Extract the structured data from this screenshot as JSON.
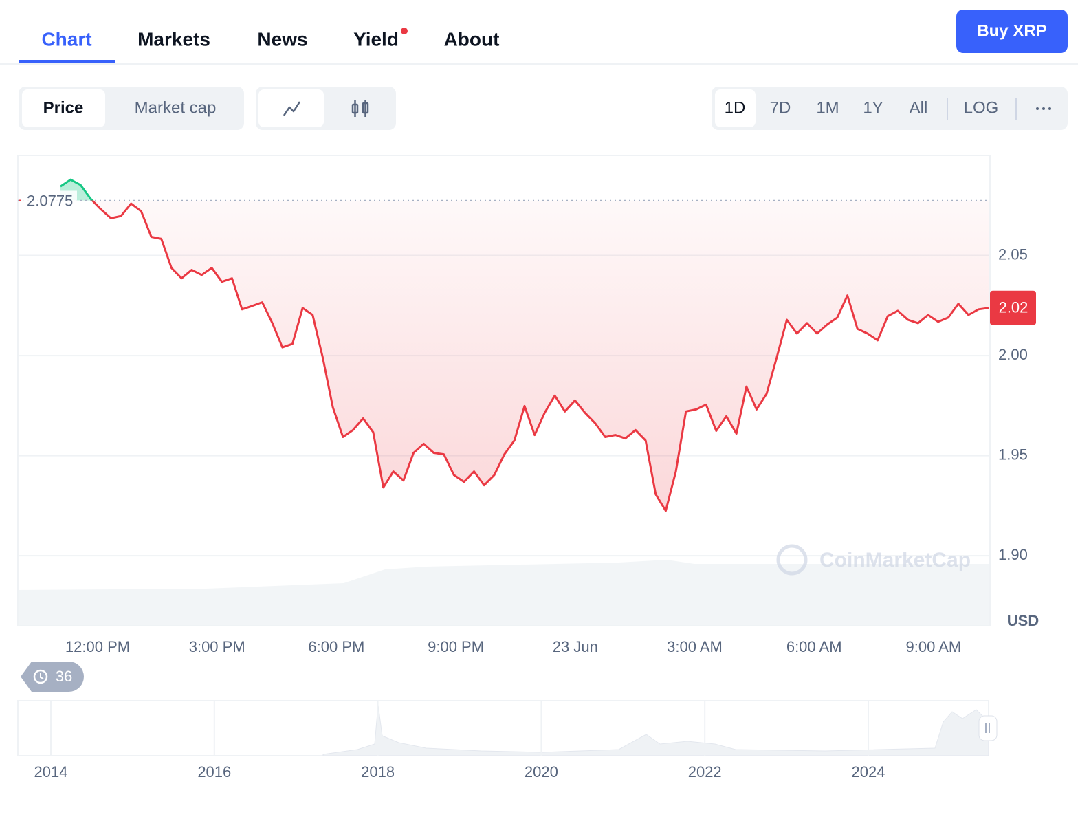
{
  "tabs": [
    "Chart",
    "Markets",
    "News",
    "Yield",
    "About"
  ],
  "buy_button": "Buy XRP",
  "metric_toggle": [
    "Price",
    "Market cap"
  ],
  "ranges": [
    "1D",
    "7D",
    "1M",
    "1Y",
    "All",
    "LOG"
  ],
  "chart_data": {
    "type": "line",
    "color": "#ea3943",
    "up_color": "#16c784",
    "values": [
      2.0845,
      2.0879,
      2.0852,
      2.0783,
      2.0731,
      2.0686,
      2.0697,
      2.0759,
      2.0721,
      2.0593,
      2.0583,
      2.0438,
      2.0386,
      2.0428,
      2.0403,
      2.0438,
      2.0369,
      2.0386,
      2.0231,
      2.0248,
      2.0266,
      2.0162,
      2.0041,
      2.0059,
      2.0238,
      2.0203,
      1.999,
      1.9741,
      1.9593,
      1.9628,
      1.9686,
      1.9617,
      1.9341,
      1.9421,
      1.9376,
      1.9514,
      1.9559,
      1.9514,
      1.9507,
      1.9403,
      1.9369,
      1.9421,
      1.9352,
      1.9403,
      1.9507,
      1.9576,
      1.9748,
      1.9603,
      1.9714,
      1.98,
      1.9721,
      1.9776,
      1.9714,
      1.9662,
      1.9593,
      1.9603,
      1.9586,
      1.9628,
      1.9576,
      1.9307,
      1.9224,
      1.9421,
      1.9721,
      1.9731,
      1.9755,
      1.9624,
      1.9697,
      1.961,
      1.9845,
      1.9731,
      1.981,
      1.999,
      2.0179,
      2.011,
      2.0162,
      2.011,
      2.0155,
      2.019,
      2.03,
      2.0134,
      2.011,
      2.0076,
      2.0197,
      2.0224,
      2.0179,
      2.0162,
      2.0203,
      2.0169,
      2.019,
      2.0259,
      2.0203,
      2.0231,
      2.0238
    ],
    "reference_value": 2.0775,
    "price_label": "2.02",
    "ylim": [
      1.865,
      2.1
    ],
    "yticks": [
      {
        "value": 1.9,
        "label": "1.90"
      },
      {
        "value": 1.95,
        "label": "1.95"
      },
      {
        "value": 2.0,
        "label": "2.00"
      },
      {
        "value": 2.05,
        "label": "2.05"
      }
    ],
    "xtick_labels": [
      "12:00 PM",
      "3:00 PM",
      "6:00 PM",
      "9:00 PM",
      "23 Jun",
      "3:00 AM",
      "6:00 AM",
      "9:00 AM"
    ],
    "unit": "USD",
    "watermark": "CoinMarketCap",
    "grid": true
  },
  "history_badge": "36",
  "overview_labels": [
    "2014",
    "2016",
    "2018",
    "2020",
    "2022",
    "2024"
  ]
}
